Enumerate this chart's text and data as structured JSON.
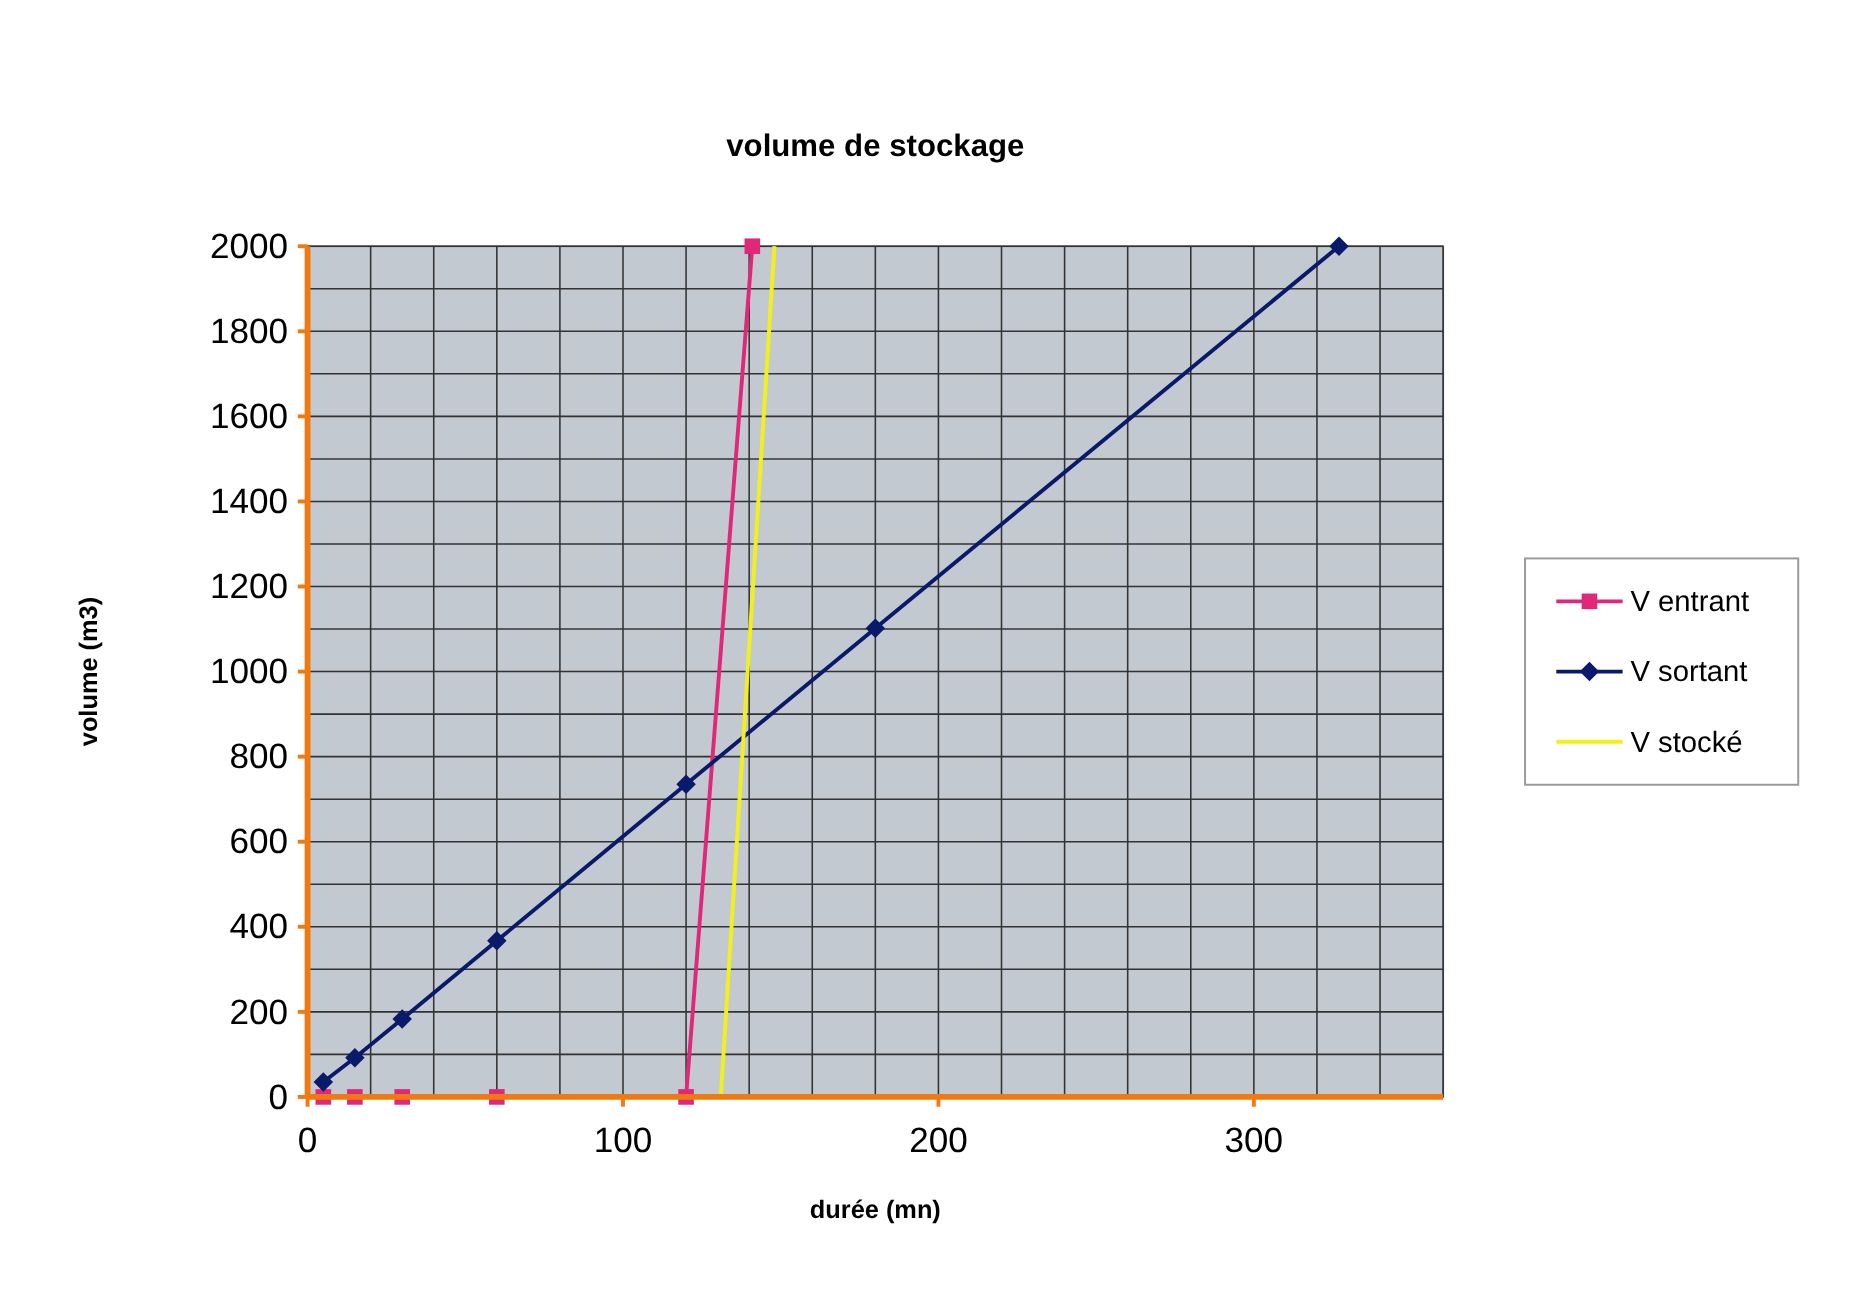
{
  "chart_data": {
    "type": "line",
    "title": "volume de stockage",
    "xlabel": "durée (mn)",
    "ylabel": "volume (m3)",
    "xlim": [
      0,
      360
    ],
    "xticks": [
      0,
      100,
      200,
      300
    ],
    "ylim": [
      0,
      2000
    ],
    "yticks": [
      0,
      200,
      400,
      600,
      800,
      1000,
      1200,
      1400,
      1600,
      1800,
      2000
    ],
    "grid": true,
    "legend": "right",
    "series": [
      {
        "name": "V entrant",
        "color": "#e0287a",
        "marker": "square",
        "x": [
          5,
          15,
          30,
          60,
          120,
          141
        ],
        "values": [
          0,
          0,
          0,
          0,
          0,
          2000
        ]
      },
      {
        "name": "V sortant",
        "color": "#0a1a6a",
        "marker": "diamond",
        "x": [
          5,
          15,
          30,
          60,
          120,
          180,
          327
        ],
        "values": [
          35,
          92,
          183,
          367,
          735,
          1102,
          2000
        ]
      },
      {
        "name": "V stocké",
        "color": "#f2f01a",
        "marker": "none",
        "x": [
          131,
          148
        ],
        "values": [
          0,
          2000
        ]
      }
    ]
  }
}
